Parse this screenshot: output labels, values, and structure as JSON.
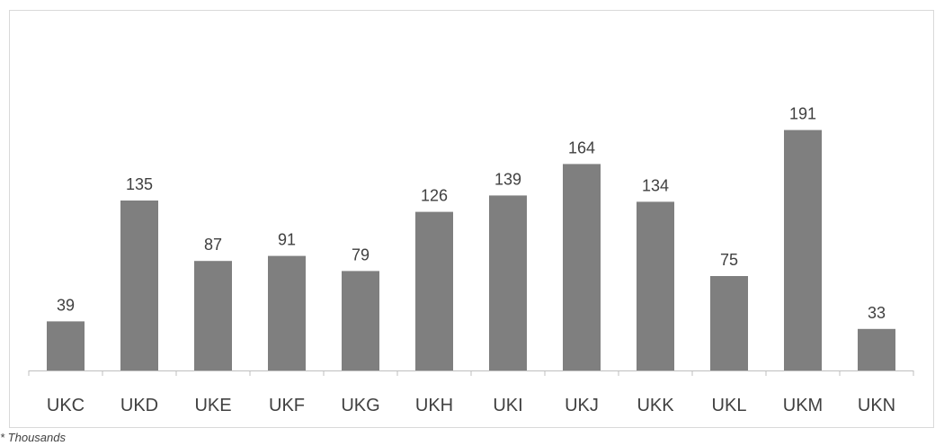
{
  "chart_data": {
    "type": "bar",
    "categories": [
      "UKC",
      "UKD",
      "UKE",
      "UKF",
      "UKG",
      "UKH",
      "UKI",
      "UKJ",
      "UKK",
      "UKL",
      "UKM",
      "UKN"
    ],
    "values": [
      39,
      135,
      87,
      91,
      79,
      126,
      139,
      164,
      134,
      75,
      191,
      33
    ],
    "ylim": [
      0,
      270
    ],
    "bar_color": "#7f7f7f",
    "grid": false,
    "legend": false
  },
  "footnote": "* Thousands"
}
